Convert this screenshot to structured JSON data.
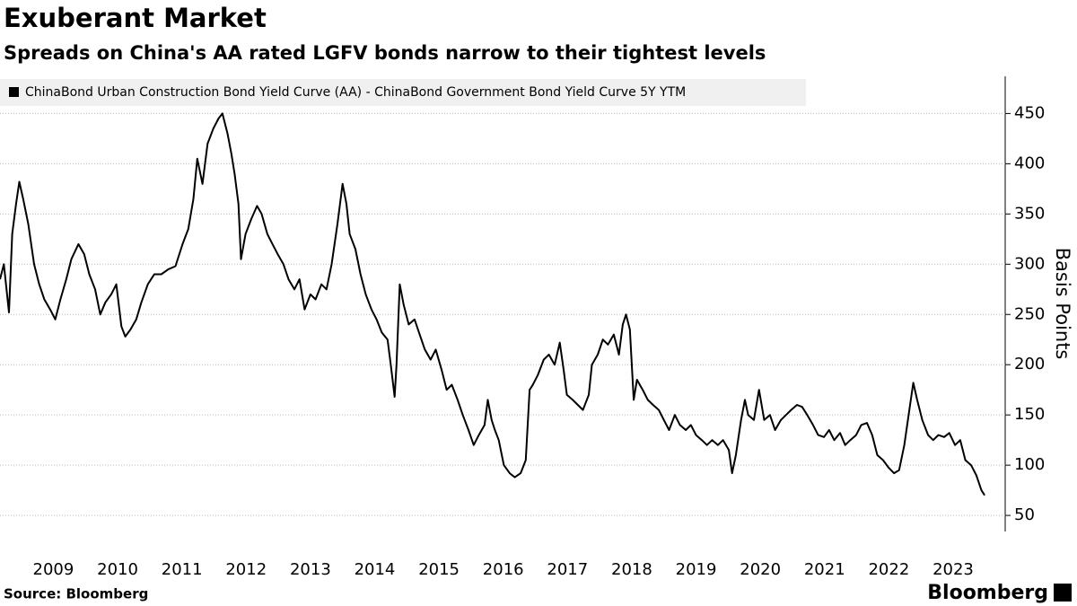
{
  "chart_data": {
    "type": "line",
    "title": "Exuberant Market",
    "subtitle": "Spreads on China's AA rated LGFV bonds narrow to their tightest levels",
    "y_label": "Basis Points",
    "source": "Source: Bloomberg",
    "brand": "Bloomberg",
    "grid": true,
    "xlim": [
      2008.67,
      2024.31
    ],
    "ylim": [
      34,
      487
    ],
    "yticks": [
      50,
      100,
      150,
      200,
      250,
      300,
      350,
      400,
      450
    ],
    "xticks": [
      {
        "value": 2009.5,
        "label": "2009"
      },
      {
        "value": 2010.5,
        "label": "2010"
      },
      {
        "value": 2011.5,
        "label": "2011"
      },
      {
        "value": 2012.5,
        "label": "2012"
      },
      {
        "value": 2013.5,
        "label": "2013"
      },
      {
        "value": 2014.5,
        "label": "2014"
      },
      {
        "value": 2015.5,
        "label": "2015"
      },
      {
        "value": 2016.5,
        "label": "2016"
      },
      {
        "value": 2017.5,
        "label": "2017"
      },
      {
        "value": 2018.5,
        "label": "2018"
      },
      {
        "value": 2019.5,
        "label": "2019"
      },
      {
        "value": 2020.5,
        "label": "2020"
      },
      {
        "value": 2021.5,
        "label": "2021"
      },
      {
        "value": 2022.5,
        "label": "2022"
      },
      {
        "value": 2023.5,
        "label": "2023"
      }
    ],
    "x": [
      2008.67,
      2008.73,
      2008.81,
      2008.86,
      2008.92,
      2008.97,
      2009.03,
      2009.11,
      2009.2,
      2009.28,
      2009.36,
      2009.45,
      2009.53,
      2009.61,
      2009.7,
      2009.78,
      2009.89,
      2009.98,
      2010.06,
      2010.15,
      2010.23,
      2010.31,
      2010.4,
      2010.48,
      2010.56,
      2010.62,
      2010.7,
      2010.79,
      2010.87,
      2010.97,
      2011.07,
      2011.18,
      2011.29,
      2011.4,
      2011.51,
      2011.6,
      2011.68,
      2011.74,
      2011.82,
      2011.9,
      2011.99,
      2012.07,
      2012.13,
      2012.21,
      2012.27,
      2012.32,
      2012.38,
      2012.42,
      2012.49,
      2012.58,
      2012.67,
      2012.74,
      2012.83,
      2012.91,
      2012.99,
      2013.08,
      2013.16,
      2013.25,
      2013.33,
      2013.41,
      2013.5,
      2013.58,
      2013.67,
      2013.75,
      2013.83,
      2013.92,
      2014.0,
      2014.06,
      2014.11,
      2014.2,
      2014.28,
      2014.36,
      2014.45,
      2014.53,
      2014.61,
      2014.7,
      2014.75,
      2014.81,
      2014.84,
      2014.89,
      2014.95,
      2015.03,
      2015.12,
      2015.2,
      2015.28,
      2015.37,
      2015.45,
      2015.54,
      2015.62,
      2015.7,
      2015.79,
      2015.87,
      2015.96,
      2016.04,
      2016.12,
      2016.21,
      2016.26,
      2016.32,
      2016.37,
      2016.43,
      2016.51,
      2016.6,
      2016.68,
      2016.77,
      2016.85,
      2016.91,
      2016.96,
      2017.04,
      2017.13,
      2017.21,
      2017.3,
      2017.38,
      2017.44,
      2017.49,
      2017.58,
      2017.66,
      2017.74,
      2017.83,
      2017.88,
      2017.97,
      2018.05,
      2018.13,
      2018.22,
      2018.3,
      2018.36,
      2018.41,
      2018.47,
      2018.53,
      2018.58,
      2018.67,
      2018.75,
      2018.83,
      2018.92,
      2019.0,
      2019.08,
      2019.17,
      2019.25,
      2019.34,
      2019.42,
      2019.5,
      2019.59,
      2019.67,
      2019.75,
      2019.84,
      2019.92,
      2020.01,
      2020.06,
      2020.12,
      2020.2,
      2020.26,
      2020.31,
      2020.4,
      2020.48,
      2020.56,
      2020.65,
      2020.73,
      2020.82,
      2020.9,
      2020.98,
      2021.07,
      2021.15,
      2021.23,
      2021.32,
      2021.4,
      2021.49,
      2021.57,
      2021.65,
      2021.74,
      2021.82,
      2021.9,
      2021.99,
      2022.07,
      2022.16,
      2022.24,
      2022.32,
      2022.41,
      2022.49,
      2022.58,
      2022.66,
      2022.74,
      2022.83,
      2022.88,
      2022.94,
      2023.02,
      2023.11,
      2023.19,
      2023.27,
      2023.36,
      2023.44,
      2023.53,
      2023.61,
      2023.69,
      2023.78,
      2023.86,
      2023.94,
      2023.99
    ],
    "series": [
      {
        "name": "ChinaBond Urban Construction Bond Yield Curve (AA) - ChinaBond Government Bond Yield Curve 5Y YTM",
        "color": "#000000",
        "values": [
          285,
          300,
          252,
          330,
          360,
          382,
          365,
          340,
          300,
          280,
          265,
          255,
          245,
          265,
          285,
          305,
          320,
          310,
          290,
          275,
          250,
          262,
          270,
          280,
          238,
          228,
          235,
          245,
          262,
          280,
          290,
          290,
          295,
          298,
          320,
          335,
          365,
          405,
          380,
          420,
          435,
          445,
          450,
          430,
          410,
          390,
          360,
          305,
          330,
          345,
          358,
          350,
          330,
          320,
          310,
          300,
          285,
          275,
          285,
          255,
          270,
          265,
          280,
          275,
          300,
          340,
          380,
          360,
          330,
          315,
          290,
          270,
          255,
          245,
          232,
          225,
          200,
          168,
          200,
          280,
          260,
          240,
          245,
          230,
          215,
          205,
          215,
          195,
          175,
          180,
          165,
          150,
          135,
          120,
          130,
          140,
          165,
          145,
          135,
          125,
          100,
          92,
          88,
          92,
          105,
          175,
          180,
          190,
          205,
          210,
          200,
          222,
          195,
          170,
          165,
          160,
          155,
          170,
          200,
          210,
          225,
          220,
          230,
          210,
          240,
          250,
          235,
          165,
          185,
          175,
          165,
          160,
          155,
          145,
          135,
          150,
          140,
          135,
          140,
          130,
          125,
          120,
          125,
          120,
          125,
          115,
          92,
          110,
          145,
          165,
          150,
          145,
          175,
          145,
          150,
          135,
          145,
          150,
          155,
          160,
          158,
          150,
          140,
          130,
          128,
          135,
          125,
          132,
          120,
          125,
          130,
          140,
          142,
          130,
          110,
          105,
          98,
          92,
          95,
          120,
          160,
          182,
          165,
          145,
          130,
          125,
          130,
          128,
          132,
          120,
          125,
          105,
          100,
          90,
          75,
          70
        ]
      }
    ]
  }
}
